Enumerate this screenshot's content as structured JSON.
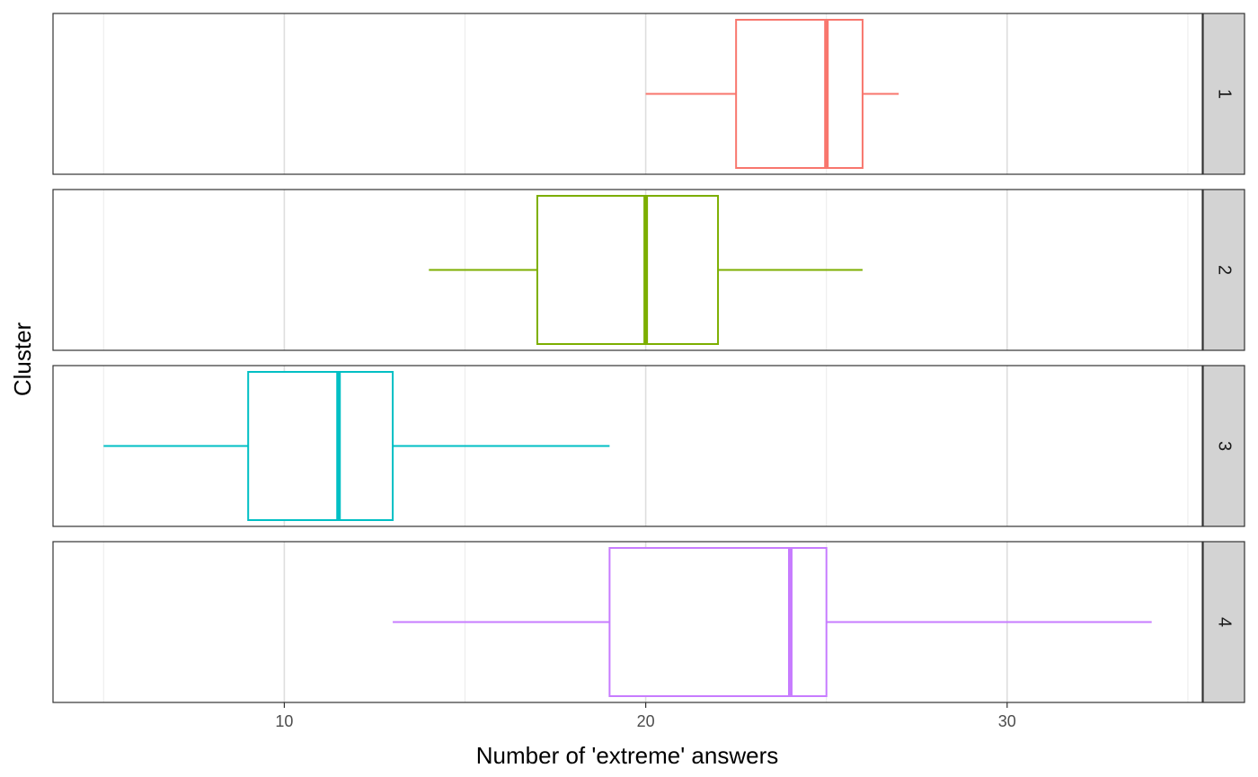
{
  "chart_data": {
    "type": "boxplot",
    "orientation": "horizontal",
    "facet": "rows",
    "xlabel": "Number of 'extreme' answers",
    "ylabel": "Cluster",
    "xlim": [
      3.6,
      35.4
    ],
    "x_ticks": [
      10,
      20,
      30
    ],
    "x_minor_gridlines": [
      5,
      15,
      25,
      35
    ],
    "grid": true,
    "legend": "none",
    "panels": [
      {
        "label": "1",
        "color": "#F8766D",
        "whisker_low": 20,
        "q1": 22.5,
        "median": 25,
        "q3": 26,
        "whisker_high": 27
      },
      {
        "label": "2",
        "color": "#7CAE00",
        "whisker_low": 14,
        "q1": 17,
        "median": 20,
        "q3": 22,
        "whisker_high": 26
      },
      {
        "label": "3",
        "color": "#00BFC4",
        "whisker_low": 5,
        "q1": 9,
        "median": 11.5,
        "q3": 13,
        "whisker_high": 19
      },
      {
        "label": "4",
        "color": "#C77CFF",
        "whisker_low": 13,
        "q1": 19,
        "median": 24,
        "q3": 25,
        "whisker_high": 34
      }
    ]
  }
}
